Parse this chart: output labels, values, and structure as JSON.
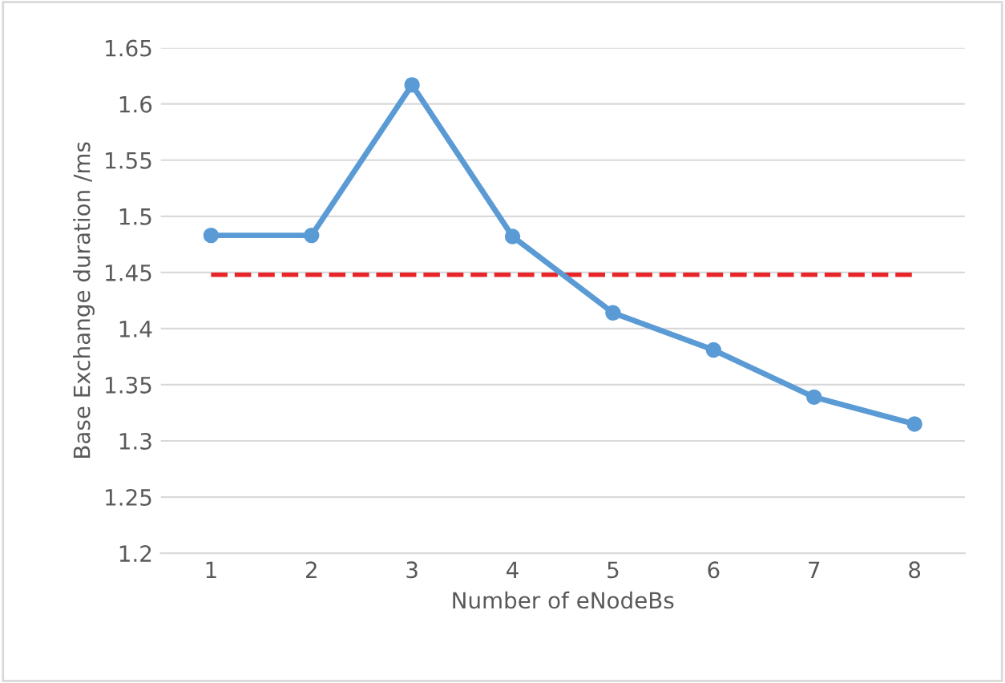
{
  "chart_data": {
    "type": "line",
    "xlabel": "Number of eNodeBs",
    "ylabel": "Base Exchange duration /ms",
    "categories": [
      "1",
      "2",
      "3",
      "4",
      "5",
      "6",
      "7",
      "8"
    ],
    "series": [
      {
        "color": "#5b9bd5",
        "values": [
          1.483,
          1.483,
          1.617,
          1.482,
          1.414,
          1.381,
          1.339,
          1.315
        ]
      }
    ],
    "ylim": [
      1.2,
      1.65
    ],
    "yticks": [
      {
        "value": 1.2,
        "label": "1.2"
      },
      {
        "value": 1.25,
        "label": "1.25"
      },
      {
        "value": 1.3,
        "label": "1.3"
      },
      {
        "value": 1.35,
        "label": "1.35"
      },
      {
        "value": 1.4,
        "label": "1.4"
      },
      {
        "value": 1.45,
        "label": "1.45"
      },
      {
        "value": 1.5,
        "label": "1.5"
      },
      {
        "value": 1.55,
        "label": "1.55"
      },
      {
        "value": 1.6,
        "label": "1.6"
      },
      {
        "value": 1.65,
        "label": "1.65"
      }
    ],
    "ref_lines": [
      {
        "axis": "y",
        "value": 1.448,
        "label": null,
        "color": "#e8262a",
        "line_style": "dashed"
      }
    ],
    "grid": "y",
    "marker": "circle",
    "line_style": "solid"
  }
}
